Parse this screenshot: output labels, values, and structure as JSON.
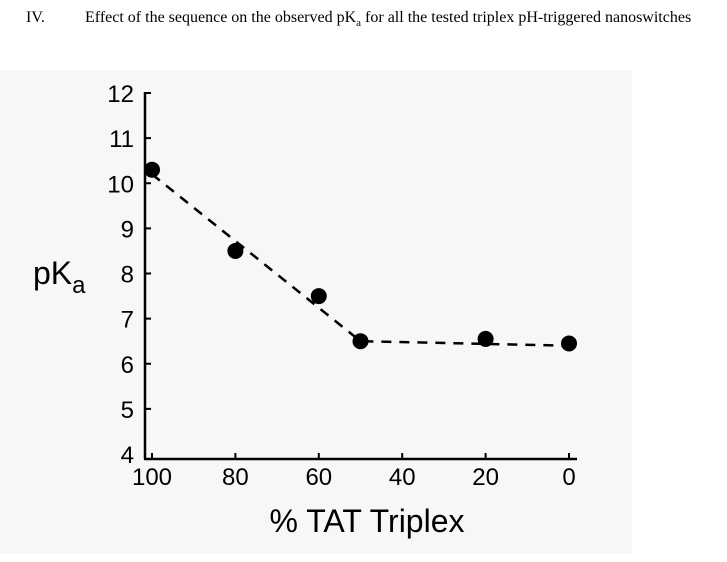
{
  "caption": {
    "number": "IV.",
    "text_before": "Effect of the sequence on the observed pK",
    "text_sub": "a",
    "text_after": " for all the tested triplex pH-triggered nanoswitches"
  },
  "chart_data": {
    "type": "scatter",
    "title": "",
    "xlabel": "% TAT Triplex",
    "ylabel_main": "pK",
    "ylabel_sub": "a",
    "xlim": [
      100,
      0
    ],
    "x_reversed": true,
    "ylim": [
      4,
      12
    ],
    "xticks": [
      100,
      80,
      60,
      40,
      20,
      0
    ],
    "yticks": [
      4,
      5,
      6,
      7,
      8,
      9,
      10,
      11,
      12
    ],
    "grid": false,
    "points": [
      {
        "x": 100,
        "y": 10.3
      },
      {
        "x": 80,
        "y": 8.5
      },
      {
        "x": 60,
        "y": 7.5
      },
      {
        "x": 50,
        "y": 6.5
      },
      {
        "x": 20,
        "y": 6.55
      },
      {
        "x": 0,
        "y": 6.45
      }
    ],
    "fit_line": {
      "style": "dashed",
      "points": [
        {
          "x": 100,
          "y": 10.2
        },
        {
          "x": 50,
          "y": 6.5
        },
        {
          "x": 0,
          "y": 6.4
        }
      ]
    },
    "marker_color": "#000000"
  }
}
